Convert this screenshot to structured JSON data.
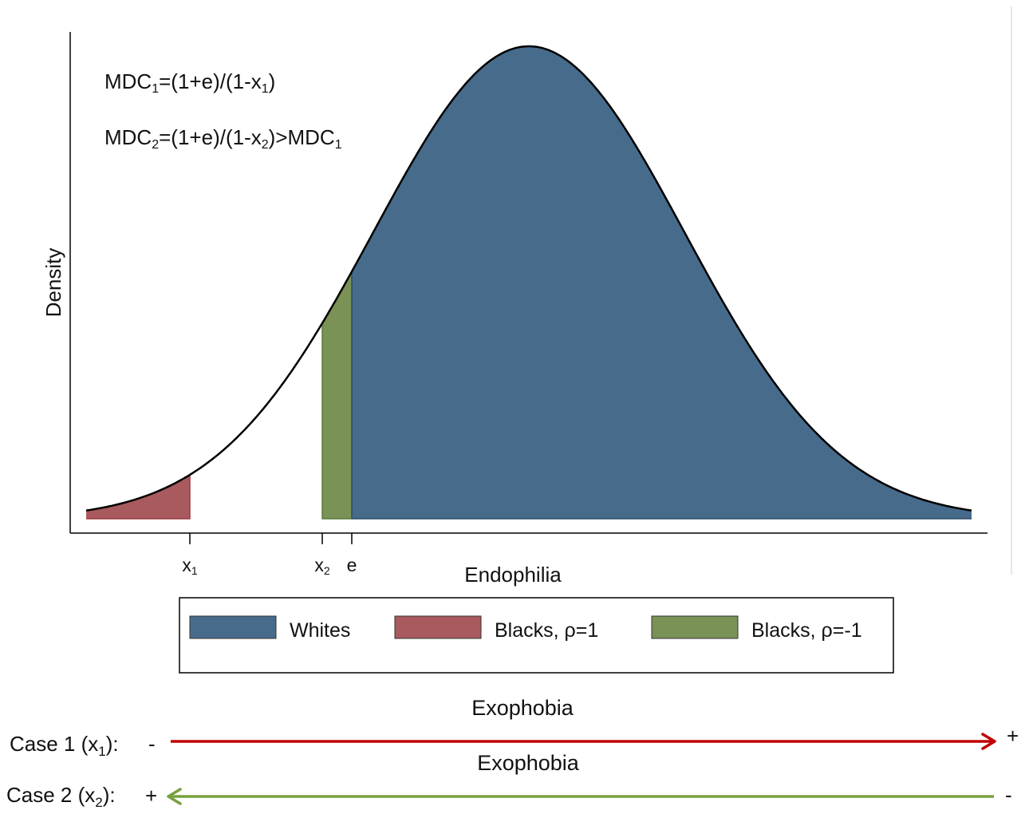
{
  "diagram": {
    "y_axis_label": "Density",
    "x_axis_label": "Endophilia",
    "formula_1": {
      "base": "MDC",
      "sub_a": "1",
      "mid": "=(1+e)/(1-x",
      "sub_b": "1",
      "tail": ")",
      "sub_c": "",
      "end": ""
    },
    "formula_2": {
      "base": "MDC",
      "sub_a": "2",
      "mid": "=(1+e)/(1-x",
      "sub_b": "2",
      "tail": ")>MDC",
      "sub_c": "1",
      "end": ""
    },
    "ticks": [
      {
        "base": "x",
        "sub": "1"
      },
      {
        "base": "x",
        "sub": "2"
      },
      {
        "base": "e",
        "sub": ""
      }
    ],
    "legend": [
      {
        "name": "Whites",
        "prefix": "Whites",
        "suffix": "",
        "color": "#476b8b"
      },
      {
        "name": "Blacks, ρ=1",
        "prefix": "Blacks, ",
        "suffix": "=1",
        "color": "#a85a5e"
      },
      {
        "name": "Blacks, ρ=-1",
        "prefix": "Blacks, ",
        "suffix": "=-1",
        "color": "#7a9255"
      }
    ],
    "rho_symbol": "ρ",
    "colors": {
      "whites": "#476b8b",
      "blacks_rho_1": "#a85a5e",
      "blacks_rho_neg1": "#7a9255",
      "case1_arrow": "#c00000",
      "case2_arrow": "#77a03f"
    }
  },
  "cases": [
    {
      "label_prefix": "Case 1 (x",
      "label_sub": "1",
      "label_suffix": "):",
      "axis_title": "Exophobia",
      "left_sign": "-",
      "right_sign": "+"
    },
    {
      "label_prefix": "Case 2 (x",
      "label_sub": "2",
      "label_suffix": "):",
      "axis_title": "Exophobia",
      "left_sign": "+",
      "right_sign": "-"
    }
  ]
}
